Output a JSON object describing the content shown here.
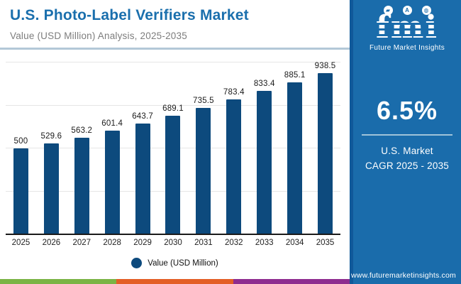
{
  "header": {
    "title": "U.S. Photo-Label Verifiers Market",
    "subtitle": "Value (USD Million) Analysis, 2025-2035"
  },
  "chart_data": {
    "type": "bar",
    "title": "U.S. Photo-Label Verifiers Market",
    "xlabel": "",
    "ylabel": "Value (USD Million)",
    "categories": [
      "2025",
      "2026",
      "2027",
      "2028",
      "2029",
      "2030",
      "2031",
      "2032",
      "2033",
      "2034",
      "2035"
    ],
    "values": [
      500,
      529.6,
      563.2,
      601.4,
      643.7,
      689.1,
      735.5,
      783.4,
      833.4,
      885.1,
      938.5
    ],
    "value_labels": [
      "500",
      "529.6",
      "563.2",
      "601.4",
      "643.7",
      "689.1",
      "735.5",
      "783.4",
      "833.4",
      "885.1",
      "938.5"
    ],
    "ylim": [
      0,
      1000
    ],
    "gridline_values": [
      250,
      500,
      750,
      1000
    ],
    "grid": "horizontal-only, no y tick labels",
    "legend_entries": [
      "Value (USD Million)"
    ],
    "legend_position": "bottom-center",
    "bar_color": "#0d4a7d"
  },
  "legend": {
    "label": "Value (USD Million)"
  },
  "sidebar": {
    "logo": {
      "text": "fmi",
      "tagline": "Future Market Insights",
      "icons": [
        "us-map",
        "compass",
        "globe"
      ]
    },
    "stat": {
      "value": "6.5%",
      "line1": "U.S. Market",
      "line2": "CAGR 2025 - 2035"
    },
    "website": "www.futuremarketinsights.com"
  },
  "colors": {
    "title_blue": "#1a6fad",
    "subtitle_gray": "#7d7d7d",
    "bar_navy": "#0d4a7d",
    "sidebar_blue": "#1a6cab",
    "sidebar_edge": "#10599a",
    "strip_green": "#7ab445",
    "strip_orange": "#e35e25",
    "strip_purple": "#8e2c8f",
    "divider_light": "#b3c8d8"
  }
}
